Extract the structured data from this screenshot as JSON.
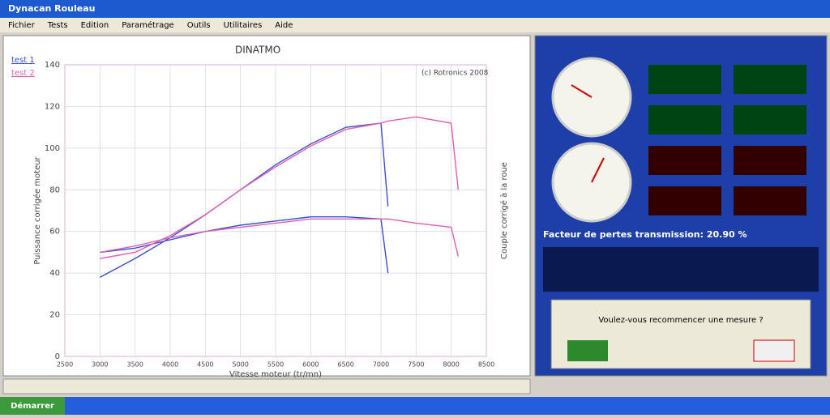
{
  "window": {
    "title": "Dynacan Rouleau",
    "menu": [
      "Fichier",
      "Tests",
      "Edition",
      "Paramétrage",
      "Outils",
      "Utilitaires",
      "Aide"
    ]
  },
  "chart_data": {
    "type": "line",
    "title": "DINATMO",
    "subtitle": "(c) Rotronics  2008",
    "x_label": "Vitesse moteur (tr/mn)",
    "y_label": "Puissance corrigée moteur",
    "y2_label": "Couple corrigé à la roue",
    "x": [
      3000,
      3500,
      4000,
      4500,
      5000,
      5500,
      6000,
      6500,
      7000,
      7100,
      7500,
      8000,
      8100
    ],
    "series": [
      {
        "name": "test 1",
        "color": "#3a4fd0",
        "values": [
          38,
          47,
          57,
          68,
          80,
          92,
          102,
          110,
          112,
          72,
          null,
          null,
          null
        ],
        "torque_values": [
          50,
          52,
          56,
          60,
          63,
          65,
          67,
          67,
          66,
          40,
          null,
          null,
          null
        ]
      },
      {
        "name": "test 2",
        "color": "#e060b0",
        "values": [
          47,
          50,
          58,
          68,
          80,
          91,
          101,
          109,
          112,
          113,
          115,
          112,
          80
        ],
        "torque_values": [
          50,
          53,
          57,
          60,
          62,
          64,
          66,
          66,
          66,
          66,
          64,
          62,
          48
        ]
      }
    ],
    "xlim": [
      2500,
      8500
    ],
    "xticks": [
      2500,
      3000,
      3500,
      4000,
      4500,
      5000,
      5500,
      6000,
      6500,
      7000,
      7500,
      8000,
      8500
    ],
    "ylim": [
      0,
      140
    ],
    "yticks": [
      0,
      20,
      40,
      60,
      80,
      100,
      120,
      140
    ],
    "grid": true
  },
  "panel": {
    "loss_factor": "Facteur de pertes transmission: 20.90 %",
    "dialog": "Voulez-vous recommencer une mesure ?"
  },
  "taskbar": {
    "start": "Démarrer"
  }
}
